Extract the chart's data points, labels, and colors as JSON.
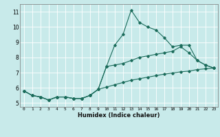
{
  "xlabel": "Humidex (Indice chaleur)",
  "bg_color": "#c8eaea",
  "line_color": "#1a6b5a",
  "grid_color": "#ffffff",
  "xlim": [
    -0.5,
    23.5
  ],
  "ylim": [
    4.75,
    11.5
  ],
  "xticks": [
    0,
    1,
    2,
    3,
    4,
    5,
    6,
    7,
    8,
    9,
    10,
    11,
    12,
    13,
    14,
    15,
    16,
    17,
    18,
    19,
    20,
    21,
    22,
    23
  ],
  "yticks": [
    5,
    6,
    7,
    8,
    9,
    10,
    11
  ],
  "series1_x": [
    0,
    1,
    2,
    3,
    4,
    5,
    6,
    7,
    8,
    9,
    10,
    11,
    12,
    13,
    14,
    15,
    16,
    17,
    18,
    19,
    20,
    21,
    22,
    23
  ],
  "series1_y": [
    5.8,
    5.5,
    5.4,
    5.2,
    5.4,
    5.4,
    5.3,
    5.3,
    5.5,
    5.9,
    7.4,
    8.8,
    9.5,
    11.1,
    10.3,
    10.0,
    9.8,
    9.3,
    8.7,
    8.8,
    8.8,
    7.8,
    7.5,
    7.3
  ],
  "series2_x": [
    0,
    1,
    2,
    3,
    4,
    5,
    6,
    7,
    8,
    9,
    10,
    11,
    12,
    13,
    14,
    15,
    16,
    17,
    18,
    19,
    20,
    21,
    22,
    23
  ],
  "series2_y": [
    5.8,
    5.5,
    5.4,
    5.2,
    5.4,
    5.4,
    5.3,
    5.3,
    5.5,
    5.9,
    7.4,
    7.5,
    7.6,
    7.8,
    8.0,
    8.1,
    8.2,
    8.3,
    8.4,
    8.7,
    8.3,
    7.8,
    7.5,
    7.3
  ],
  "series3_x": [
    0,
    1,
    2,
    3,
    4,
    5,
    6,
    7,
    8,
    9,
    10,
    11,
    12,
    13,
    14,
    15,
    16,
    17,
    18,
    19,
    20,
    21,
    22,
    23
  ],
  "series3_y": [
    5.8,
    5.5,
    5.4,
    5.2,
    5.4,
    5.4,
    5.3,
    5.3,
    5.5,
    5.9,
    6.05,
    6.2,
    6.35,
    6.5,
    6.6,
    6.7,
    6.8,
    6.9,
    6.97,
    7.05,
    7.1,
    7.2,
    7.25,
    7.3
  ]
}
